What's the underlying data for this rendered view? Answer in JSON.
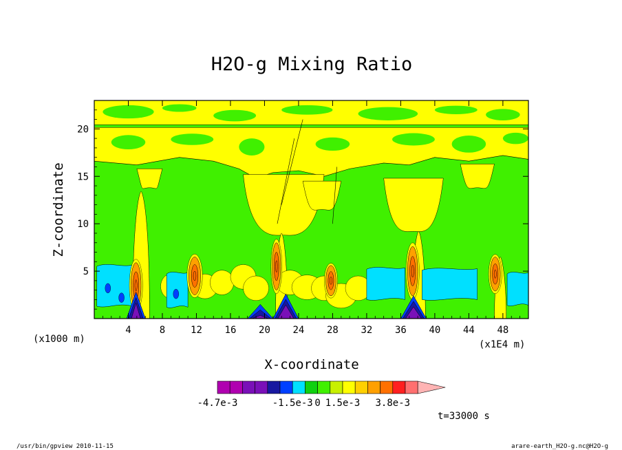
{
  "chart_data": {
    "type": "heatmap",
    "title": "H2O-g Mixing Ratio",
    "xlabel": "X-coordinate",
    "ylabel": "Z-coordinate",
    "x_unit_left": "(x1000 m)",
    "x_unit_right": "(x1E4 m)",
    "xlim": [
      0,
      51
    ],
    "ylim": [
      0,
      23
    ],
    "xticks": [
      4,
      8,
      12,
      16,
      20,
      24,
      28,
      32,
      36,
      40,
      44,
      48
    ],
    "yticks": [
      5,
      10,
      15,
      20
    ],
    "time_label": "t=33000 s",
    "colorbar": {
      "colors": [
        "#b000b0",
        "#b000b0",
        "#7a10b8",
        "#7a10b8",
        "#1818a0",
        "#0040ff",
        "#00e0ff",
        "#10d010",
        "#40f000",
        "#c8f000",
        "#ffff00",
        "#ffd000",
        "#ffa000",
        "#ff7000",
        "#ff2020",
        "#ff7070",
        "#ffb4b4"
      ],
      "labels": [
        {
          "text": "-4.7e-3",
          "bin": 0
        },
        {
          "text": "-1.5e-3",
          "bin": 6
        },
        {
          "text": "0",
          "bin": 8
        },
        {
          "text": "1.5e-3",
          "bin": 10
        },
        {
          "text": "3.8e-3",
          "bin": 14
        }
      ]
    },
    "regions": {
      "green_band": [
        [
          0,
          16.6
        ],
        [
          5,
          16.2
        ],
        [
          10,
          17
        ],
        [
          14,
          16.6
        ],
        [
          17,
          15.8
        ],
        [
          19,
          14.8
        ],
        [
          21,
          15.4
        ],
        [
          24,
          15.6
        ],
        [
          27,
          15
        ],
        [
          30,
          15.8
        ],
        [
          34,
          16.4
        ],
        [
          37,
          16.2
        ],
        [
          40,
          17
        ],
        [
          44,
          16.6
        ],
        [
          48,
          17.2
        ],
        [
          51,
          16.8
        ]
      ],
      "yellow_intrusions": [
        {
          "x": 17.5,
          "w": 9.5,
          "top": 15.2,
          "bottom": 8.8
        },
        {
          "x": 24.5,
          "w": 4.5,
          "top": 14.5,
          "bottom": 11.5
        },
        {
          "x": 34,
          "w": 7,
          "top": 14.8,
          "bottom": 9.2
        },
        {
          "x": 5,
          "w": 3,
          "top": 15.8,
          "bottom": 13.8
        },
        {
          "x": 43,
          "w": 4,
          "top": 16.3,
          "bottom": 13.8
        }
      ],
      "yellow_plumes": [
        {
          "x": 4.5,
          "w": 2,
          "top": 13.4
        },
        {
          "x": 21.3,
          "w": 1.4,
          "top": 9
        },
        {
          "x": 37.3,
          "w": 1.6,
          "top": 9.2
        },
        {
          "x": 47,
          "w": 1.4,
          "top": 6.5
        }
      ],
      "cyan_pools": [
        {
          "x0": 0.3,
          "x1": 4.5,
          "top": 5.8,
          "bottom": 1.3
        },
        {
          "x0": 8.5,
          "x1": 11,
          "top": 5,
          "bottom": 1.2
        },
        {
          "x0": 32,
          "x1": 36.5,
          "top": 5.5,
          "bottom": 2
        },
        {
          "x0": 38.5,
          "x1": 45,
          "top": 5.4,
          "bottom": 2
        },
        {
          "x0": 48.5,
          "x1": 51,
          "top": 5,
          "bottom": 1.4
        }
      ],
      "orange_cores": [
        {
          "x": 4.9,
          "y": 3.5,
          "rx": 0.6,
          "ry": 2.4
        },
        {
          "x": 11.8,
          "y": 4.5,
          "rx": 0.7,
          "ry": 2
        },
        {
          "x": 21.4,
          "y": 5.5,
          "rx": 0.5,
          "ry": 2.5
        },
        {
          "x": 27.8,
          "y": 4,
          "rx": 0.6,
          "ry": 1.6
        },
        {
          "x": 37.4,
          "y": 5,
          "rx": 0.6,
          "ry": 2.6
        },
        {
          "x": 47.1,
          "y": 4.7,
          "rx": 0.6,
          "ry": 1.8
        }
      ],
      "purple_bases": [
        {
          "x0": 3.8,
          "x1": 6,
          "top": 2.8
        },
        {
          "x0": 18,
          "x1": 21,
          "top": 1.5
        },
        {
          "x0": 21,
          "x1": 24,
          "top": 2.6
        },
        {
          "x0": 36,
          "x1": 39,
          "top": 2.4
        }
      ],
      "stratos_line_z": 20.3
    }
  },
  "footer": {
    "left": "/usr/bin/gpview   2010-11-15",
    "right": "arare-earth_H2O-g.nc@H2O-g"
  }
}
